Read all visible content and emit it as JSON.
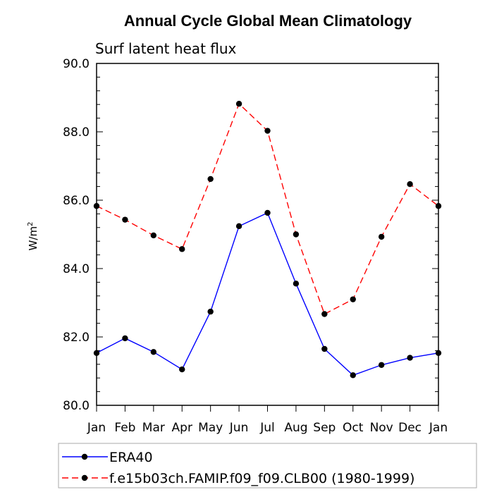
{
  "chart_data": {
    "type": "line",
    "title": "Annual Cycle Global Mean Climatology",
    "subtitle": "Surf latent heat flux",
    "xlabel": "",
    "ylabel": "W/m",
    "ylabel_superscript": "2",
    "ylim": [
      80.0,
      90.0
    ],
    "yticks": [
      "80.0",
      "82.0",
      "84.0",
      "86.0",
      "88.0",
      "90.0"
    ],
    "yticks_values": [
      80,
      82,
      84,
      86,
      88,
      90
    ],
    "categories": [
      "Jan",
      "Feb",
      "Mar",
      "Apr",
      "May",
      "Jun",
      "Jul",
      "Aug",
      "Sep",
      "Oct",
      "Nov",
      "Dec",
      "Jan"
    ],
    "series": [
      {
        "name": "ERA40",
        "color": "#0000ff",
        "dash": "solid",
        "values": [
          81.53,
          81.96,
          81.56,
          81.05,
          82.74,
          85.24,
          85.63,
          83.56,
          81.65,
          80.88,
          81.18,
          81.39,
          81.53
        ]
      },
      {
        "name": "f.e15b03ch.FAMIP.f09_f09.CLB00 (1980-1999)",
        "color": "#ff0000",
        "dash": "dashed",
        "values": [
          85.83,
          85.43,
          84.97,
          84.57,
          86.62,
          88.82,
          88.03,
          85.0,
          82.67,
          83.1,
          84.93,
          86.47,
          85.83
        ]
      }
    ],
    "legend_position": "bottom"
  }
}
